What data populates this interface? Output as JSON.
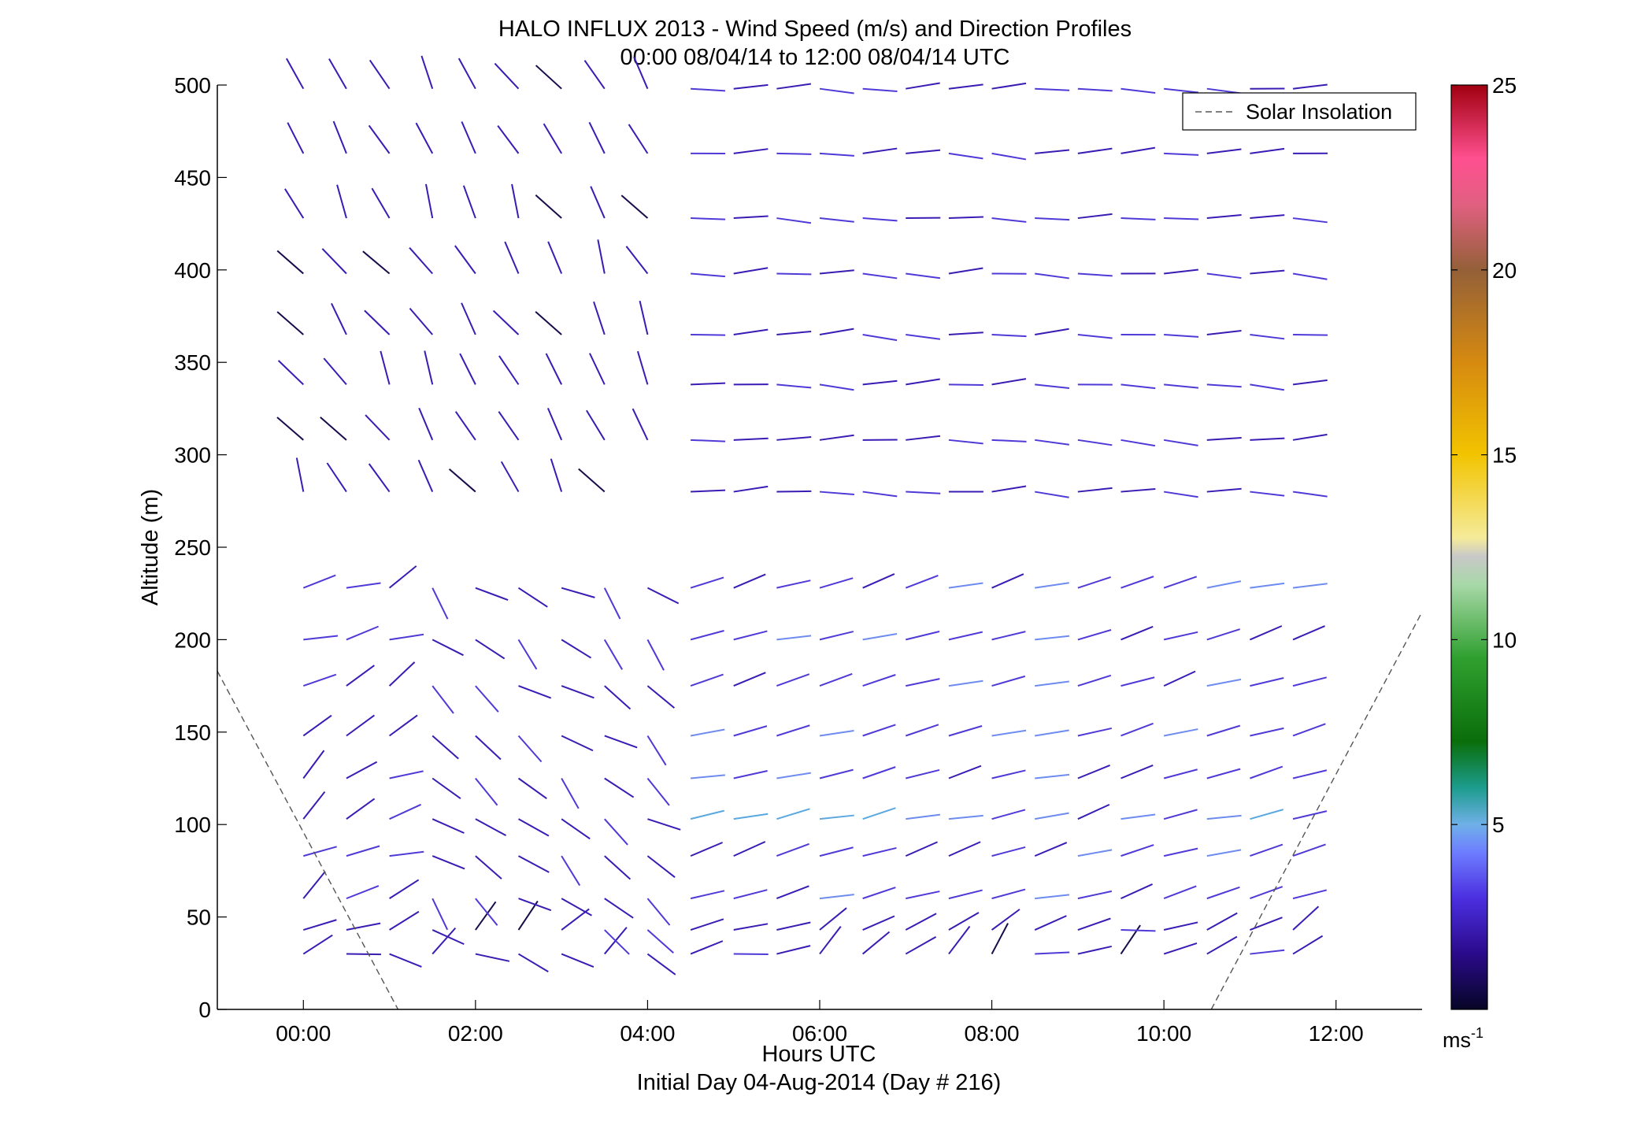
{
  "chart_data": {
    "type": "vector-field",
    "title": "HALO INFLUX 2013 - Wind Speed (m/s) and Direction Profiles",
    "subtitle": "00:00 08/04/14 to 12:00 08/04/14  UTC",
    "xlabel": "Hours UTC",
    "xlabel2": "Initial Day 04-Aug-2014 (Day # 216)",
    "ylabel": "Altitude (m)",
    "xlim": [
      -1.0,
      13.0
    ],
    "ylim": [
      0,
      500
    ],
    "x_ticks": [
      0,
      2,
      4,
      6,
      8,
      10,
      12
    ],
    "x_tick_labels": [
      "00:00",
      "02:00",
      "04:00",
      "06:00",
      "08:00",
      "10:00",
      "12:00"
    ],
    "y_ticks": [
      0,
      50,
      100,
      150,
      200,
      250,
      300,
      350,
      400,
      450,
      500
    ],
    "y_tick_labels": [
      "0",
      "50",
      "100",
      "150",
      "200",
      "250",
      "300",
      "350",
      "400",
      "450",
      "500"
    ],
    "legend": {
      "entries": [
        "Solar Insolation"
      ],
      "placement": "top-right"
    },
    "colorbar": {
      "range": [
        0,
        25
      ],
      "ticks": [
        5,
        10,
        15,
        20,
        25
      ],
      "tick_labels": [
        "5",
        "10",
        "15",
        "20",
        "25"
      ],
      "units": "ms",
      "units_exp": "-1"
    },
    "solar_insolation": {
      "left": [
        [
          -1.0,
          183
        ],
        [
          1.1,
          0
        ]
      ],
      "right": [
        [
          10.55,
          0
        ],
        [
          13.0,
          215
        ]
      ]
    },
    "altitudes": [
      30,
      43,
      60,
      83,
      103,
      125,
      148,
      175,
      200,
      228,
      280,
      308,
      338,
      365,
      398,
      428,
      463,
      498
    ],
    "times": [
      0.0,
      0.5,
      1.0,
      1.5,
      2.0,
      2.5,
      3.0,
      3.5,
      4.0,
      4.5,
      5.0,
      5.5,
      6.0,
      6.5,
      7.0,
      7.5,
      8.0,
      8.5,
      9.0,
      9.5,
      10.0,
      10.5,
      11.0,
      11.5
    ],
    "wind_direction_deg": {
      "upper_levels_before_0430": [
        150,
        160
      ],
      "upper_levels_after_0430": [
        260,
        280
      ],
      "lower_levels_after_0430": [
        240,
        260
      ]
    },
    "wind_speed_ms": {
      "typical": [
        1,
        4
      ],
      "max_near_100m": [
        5,
        6
      ]
    }
  }
}
